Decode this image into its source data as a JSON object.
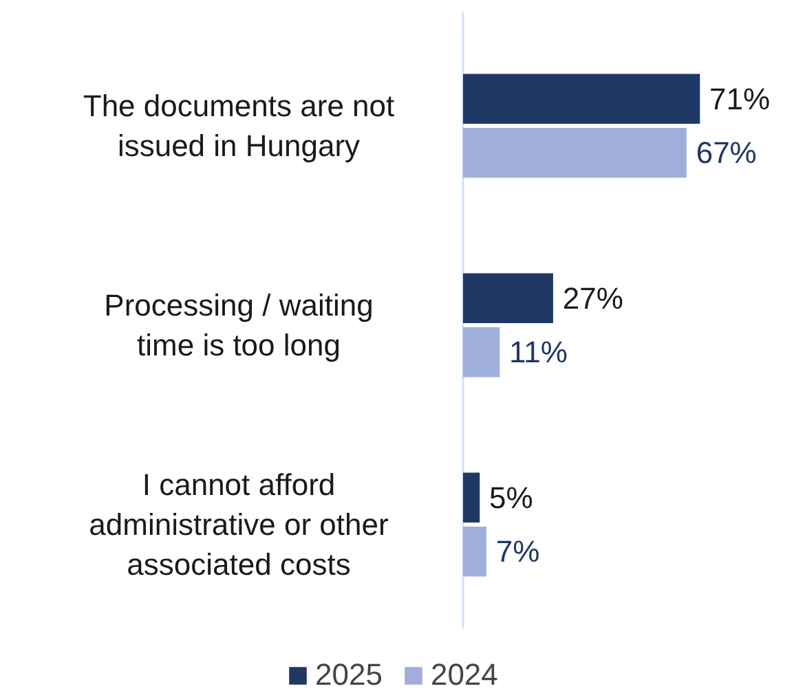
{
  "chart_data": {
    "type": "bar",
    "orientation": "horizontal",
    "categories": [
      "The documents are not issued in Hungary",
      "Processing / waiting time is too long",
      "I cannot afford administrative or other associated costs"
    ],
    "series": [
      {
        "name": "2025",
        "color": "#1f3864",
        "values": [
          71,
          27,
          5
        ],
        "value_labels": [
          "71%",
          "27%",
          "5%"
        ]
      },
      {
        "name": "2024",
        "color": "#9fafd9",
        "values": [
          67,
          11,
          7
        ],
        "value_labels": [
          "67%",
          "11%",
          "7%"
        ]
      }
    ],
    "legend": "bottom"
  }
}
